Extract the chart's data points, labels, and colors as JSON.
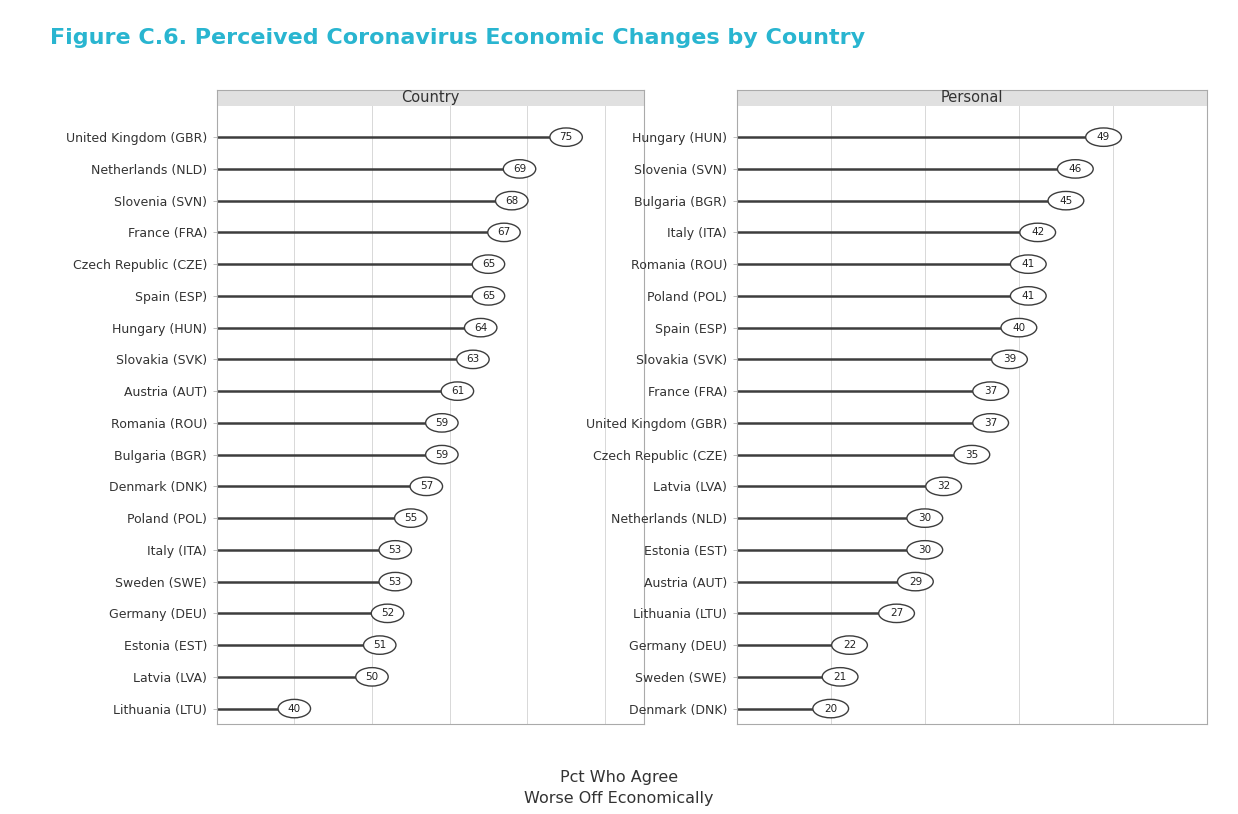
{
  "title": "Figure C.6. Perceived Coronavirus Economic Changes by Country",
  "title_color": "#29b5d0",
  "title_fontsize": 16,
  "xlabel": "Pct Who Agree\nWorse Off Economically",
  "xlabel_fontsize": 11.5,
  "country_panel": {
    "header": "Country",
    "countries": [
      "United Kingdom (GBR)",
      "Netherlands (NLD)",
      "Slovenia (SVN)",
      "France (FRA)",
      "Czech Republic (CZE)",
      "Spain (ESP)",
      "Hungary (HUN)",
      "Slovakia (SVK)",
      "Austria (AUT)",
      "Romania (ROU)",
      "Bulgaria (BGR)",
      "Denmark (DNK)",
      "Poland (POL)",
      "Italy (ITA)",
      "Sweden (SWE)",
      "Germany (DEU)",
      "Estonia (EST)",
      "Latvia (LVA)",
      "Lithuania (LTU)"
    ],
    "values": [
      75,
      69,
      68,
      67,
      65,
      65,
      64,
      63,
      61,
      59,
      59,
      57,
      55,
      53,
      53,
      52,
      51,
      50,
      40
    ],
    "xlim": [
      30,
      85
    ]
  },
  "personal_panel": {
    "header": "Personal",
    "countries": [
      "Hungary (HUN)",
      "Slovenia (SVN)",
      "Bulgaria (BGR)",
      "Italy (ITA)",
      "Romania (ROU)",
      "Poland (POL)",
      "Spain (ESP)",
      "Slovakia (SVK)",
      "France (FRA)",
      "United Kingdom (GBR)",
      "Czech Republic (CZE)",
      "Latvia (LVA)",
      "Netherlands (NLD)",
      "Estonia (EST)",
      "Austria (AUT)",
      "Lithuania (LTU)",
      "Germany (DEU)",
      "Sweden (SWE)",
      "Denmark (DNK)"
    ],
    "values": [
      49,
      46,
      45,
      42,
      41,
      41,
      40,
      39,
      37,
      37,
      35,
      32,
      30,
      30,
      29,
      27,
      22,
      21,
      20
    ],
    "xlim": [
      10,
      60
    ]
  },
  "line_color": "#3d3d3d",
  "circle_facecolor": "#ffffff",
  "circle_edgecolor": "#3d3d3d",
  "line_width": 1.8,
  "text_fontsize": 7.5,
  "label_fontsize": 9,
  "header_fontsize": 10.5,
  "grid_color": "#d8d8d8",
  "header_bg": "#e0e0e0",
  "border_color": "#aaaaaa"
}
